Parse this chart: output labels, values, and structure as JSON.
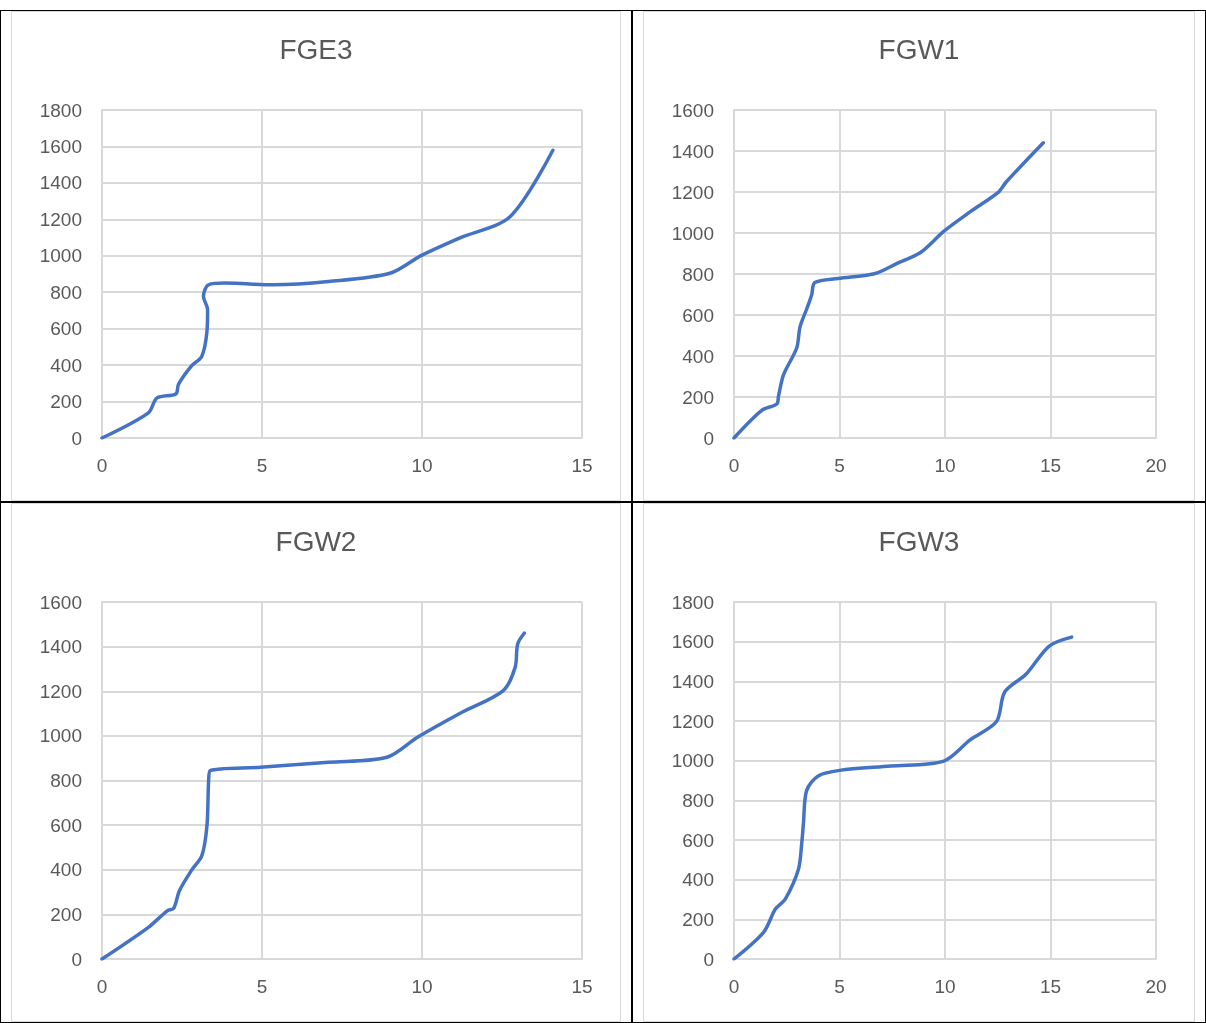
{
  "chart_data": [
    {
      "type": "line",
      "title": "FGE3",
      "x": [
        0,
        1.45,
        1.72,
        2.31,
        2.39,
        2.79,
        3.12,
        3.28,
        3.3,
        3.17,
        3.33,
        3.86,
        5.36,
        7.08,
        9.0,
        9.97,
        11.15,
        12.75,
        14.09
      ],
      "series": [
        {
          "color": "#4472c4",
          "values": [
            0,
            138,
            220,
            242,
            294,
            394,
            449,
            585,
            704,
            777,
            841,
            850,
            841,
            859,
            904,
            1001,
            1096,
            1214,
            1579
          ]
        }
      ],
      "xlim": [
        0,
        15
      ],
      "xticks": [
        0,
        5,
        10,
        15
      ],
      "ylim": [
        0,
        1800
      ],
      "yticks": [
        0,
        200,
        400,
        600,
        800,
        1000,
        1200,
        1400,
        1600,
        1800
      ],
      "grid": true,
      "marker": "none",
      "line_style": "solid"
    },
    {
      "type": "line",
      "title": "FGW1",
      "x": [
        0,
        1.33,
        2.03,
        2.11,
        2.35,
        2.97,
        3.13,
        3.44,
        3.68,
        3.83,
        4.93,
        6.65,
        7.75,
        8.84,
        9.94,
        11.19,
        12.52,
        12.91,
        14.66
      ],
      "series": [
        {
          "color": "#4472c4",
          "values": [
            0,
            136,
            166,
            205,
            309,
            439,
            542,
            628,
            698,
            758,
            778,
            801,
            853,
            905,
            1008,
            1103,
            1198,
            1250,
            1440
          ]
        }
      ],
      "xlim": [
        0,
        20
      ],
      "xticks": [
        0,
        5,
        10,
        15,
        20
      ],
      "ylim": [
        0,
        1600
      ],
      "yticks": [
        0,
        200,
        400,
        600,
        800,
        1000,
        1200,
        1400,
        1600
      ],
      "grid": true,
      "marker": "none",
      "line_style": "solid"
    },
    {
      "type": "line",
      "title": "FGW2",
      "x": [
        0,
        1.45,
        2.04,
        2.24,
        2.42,
        2.79,
        3.12,
        3.28,
        3.33,
        3.38,
        4.94,
        7.08,
        8.9,
        9.86,
        11.25,
        12.54,
        12.91,
        12.99,
        13.2
      ],
      "series": [
        {
          "color": "#4472c4",
          "values": [
            0,
            142,
            216,
            227,
            306,
            396,
            463,
            598,
            792,
            844,
            859,
            882,
            904,
            994,
            1106,
            1203,
            1307,
            1412,
            1461
          ]
        }
      ],
      "xlim": [
        0,
        15
      ],
      "xticks": [
        0,
        5,
        10,
        15
      ],
      "ylim": [
        0,
        1600
      ],
      "yticks": [
        0,
        200,
        400,
        600,
        800,
        1000,
        1200,
        1400,
        1600
      ],
      "grid": true,
      "marker": "none",
      "line_style": "solid"
    },
    {
      "type": "line",
      "title": "FGW3",
      "x": [
        0,
        1.41,
        1.96,
        2.43,
        3.05,
        3.21,
        3.29,
        3.44,
        3.99,
        5.01,
        7.43,
        9.94,
        11.19,
        12.44,
        12.83,
        13.85,
        14.94,
        16.0
      ],
      "series": [
        {
          "color": "#4472c4",
          "values": [
            0,
            136,
            252,
            302,
            451,
            583,
            683,
            849,
            923,
            951,
            973,
            998,
            1105,
            1197,
            1346,
            1437,
            1578,
            1623
          ]
        }
      ],
      "xlim": [
        0,
        20
      ],
      "xticks": [
        0,
        5,
        10,
        15,
        20
      ],
      "ylim": [
        0,
        1800
      ],
      "yticks": [
        0,
        200,
        400,
        600,
        800,
        1000,
        1200,
        1400,
        1600,
        1800
      ],
      "grid": true,
      "marker": "none",
      "line_style": "solid"
    }
  ]
}
